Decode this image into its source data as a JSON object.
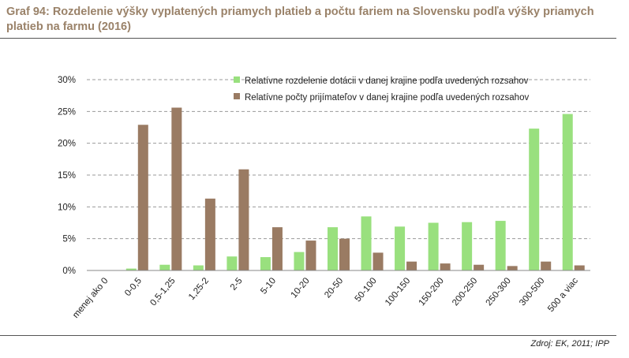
{
  "title": "Graf 94: Rozdelenie výšky vyplatených priamych platieb a počtu fariem na Slovensku podľa výšky priamych platieb na farmu (2016)",
  "source": "Zdroj: EK, 2011; IPP",
  "colors": {
    "series1": "#99e07e",
    "series2": "#9a7b63",
    "title": "#9a8269",
    "grid": "#9a9a9a"
  },
  "chart_data": {
    "type": "bar",
    "categories": [
      "menej ako 0",
      "0-0,5",
      "0,5-1,25",
      "1,25-2",
      "2-5",
      "5-10",
      "10-20",
      "20-50",
      "50-100",
      "100-150",
      "150-200",
      "200-250",
      "250-300",
      "300-500",
      "500 a viac"
    ],
    "series": [
      {
        "name": "Relatívne rozdelenie dotácii v danej krajine podľa uvedených rozsahov",
        "values": [
          0,
          0.3,
          0.9,
          0.8,
          2.2,
          2.1,
          2.9,
          6.8,
          8.5,
          6.9,
          7.5,
          7.6,
          7.8,
          22.3,
          24.6
        ]
      },
      {
        "name": "Relatívne počty prijímateľov v danej krajine podľa uvedených rozsahov",
        "values": [
          0,
          22.9,
          25.6,
          11.3,
          15.9,
          6.8,
          4.7,
          5.0,
          2.8,
          1.4,
          1.1,
          0.9,
          0.7,
          1.4,
          0.8
        ]
      }
    ],
    "ylim": [
      0,
      30
    ],
    "yticks": [
      "0%",
      "5%",
      "10%",
      "15%",
      "20%",
      "25%",
      "30%"
    ],
    "grid": true,
    "legend_position": "top-right"
  }
}
